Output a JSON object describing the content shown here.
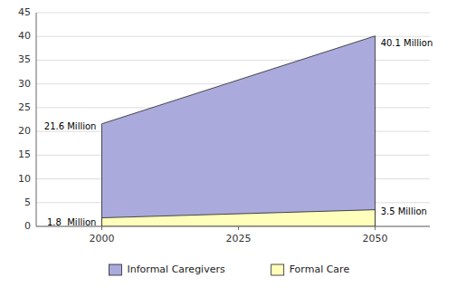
{
  "chart_data": {
    "type": "area",
    "x": [
      2000,
      2050
    ],
    "series": [
      {
        "name": "Informal Caregivers",
        "color": "#aaaadd",
        "values": [
          21.6,
          40.1
        ]
      },
      {
        "name": "Formal Care",
        "color": "#ffffbb",
        "values": [
          1.8,
          3.5
        ]
      }
    ],
    "xlim": [
      1988,
      2060
    ],
    "xticks": [
      2000,
      2025,
      2050
    ],
    "ylim": [
      0,
      45
    ],
    "yticks": [
      0,
      5,
      10,
      15,
      20,
      25,
      30,
      35,
      40,
      45
    ],
    "grid": true,
    "legend": "bottom",
    "annotations": [
      {
        "text": "21.6 Million",
        "x": 1999,
        "y": 21.0
      },
      {
        "text": "1.8  Million",
        "x": 1999,
        "y": 0.8
      },
      {
        "text": "40.1 Million",
        "x": 2051,
        "y": 38.5
      },
      {
        "text": "3.5 Million",
        "x": 2051,
        "y": 3.0
      }
    ]
  }
}
